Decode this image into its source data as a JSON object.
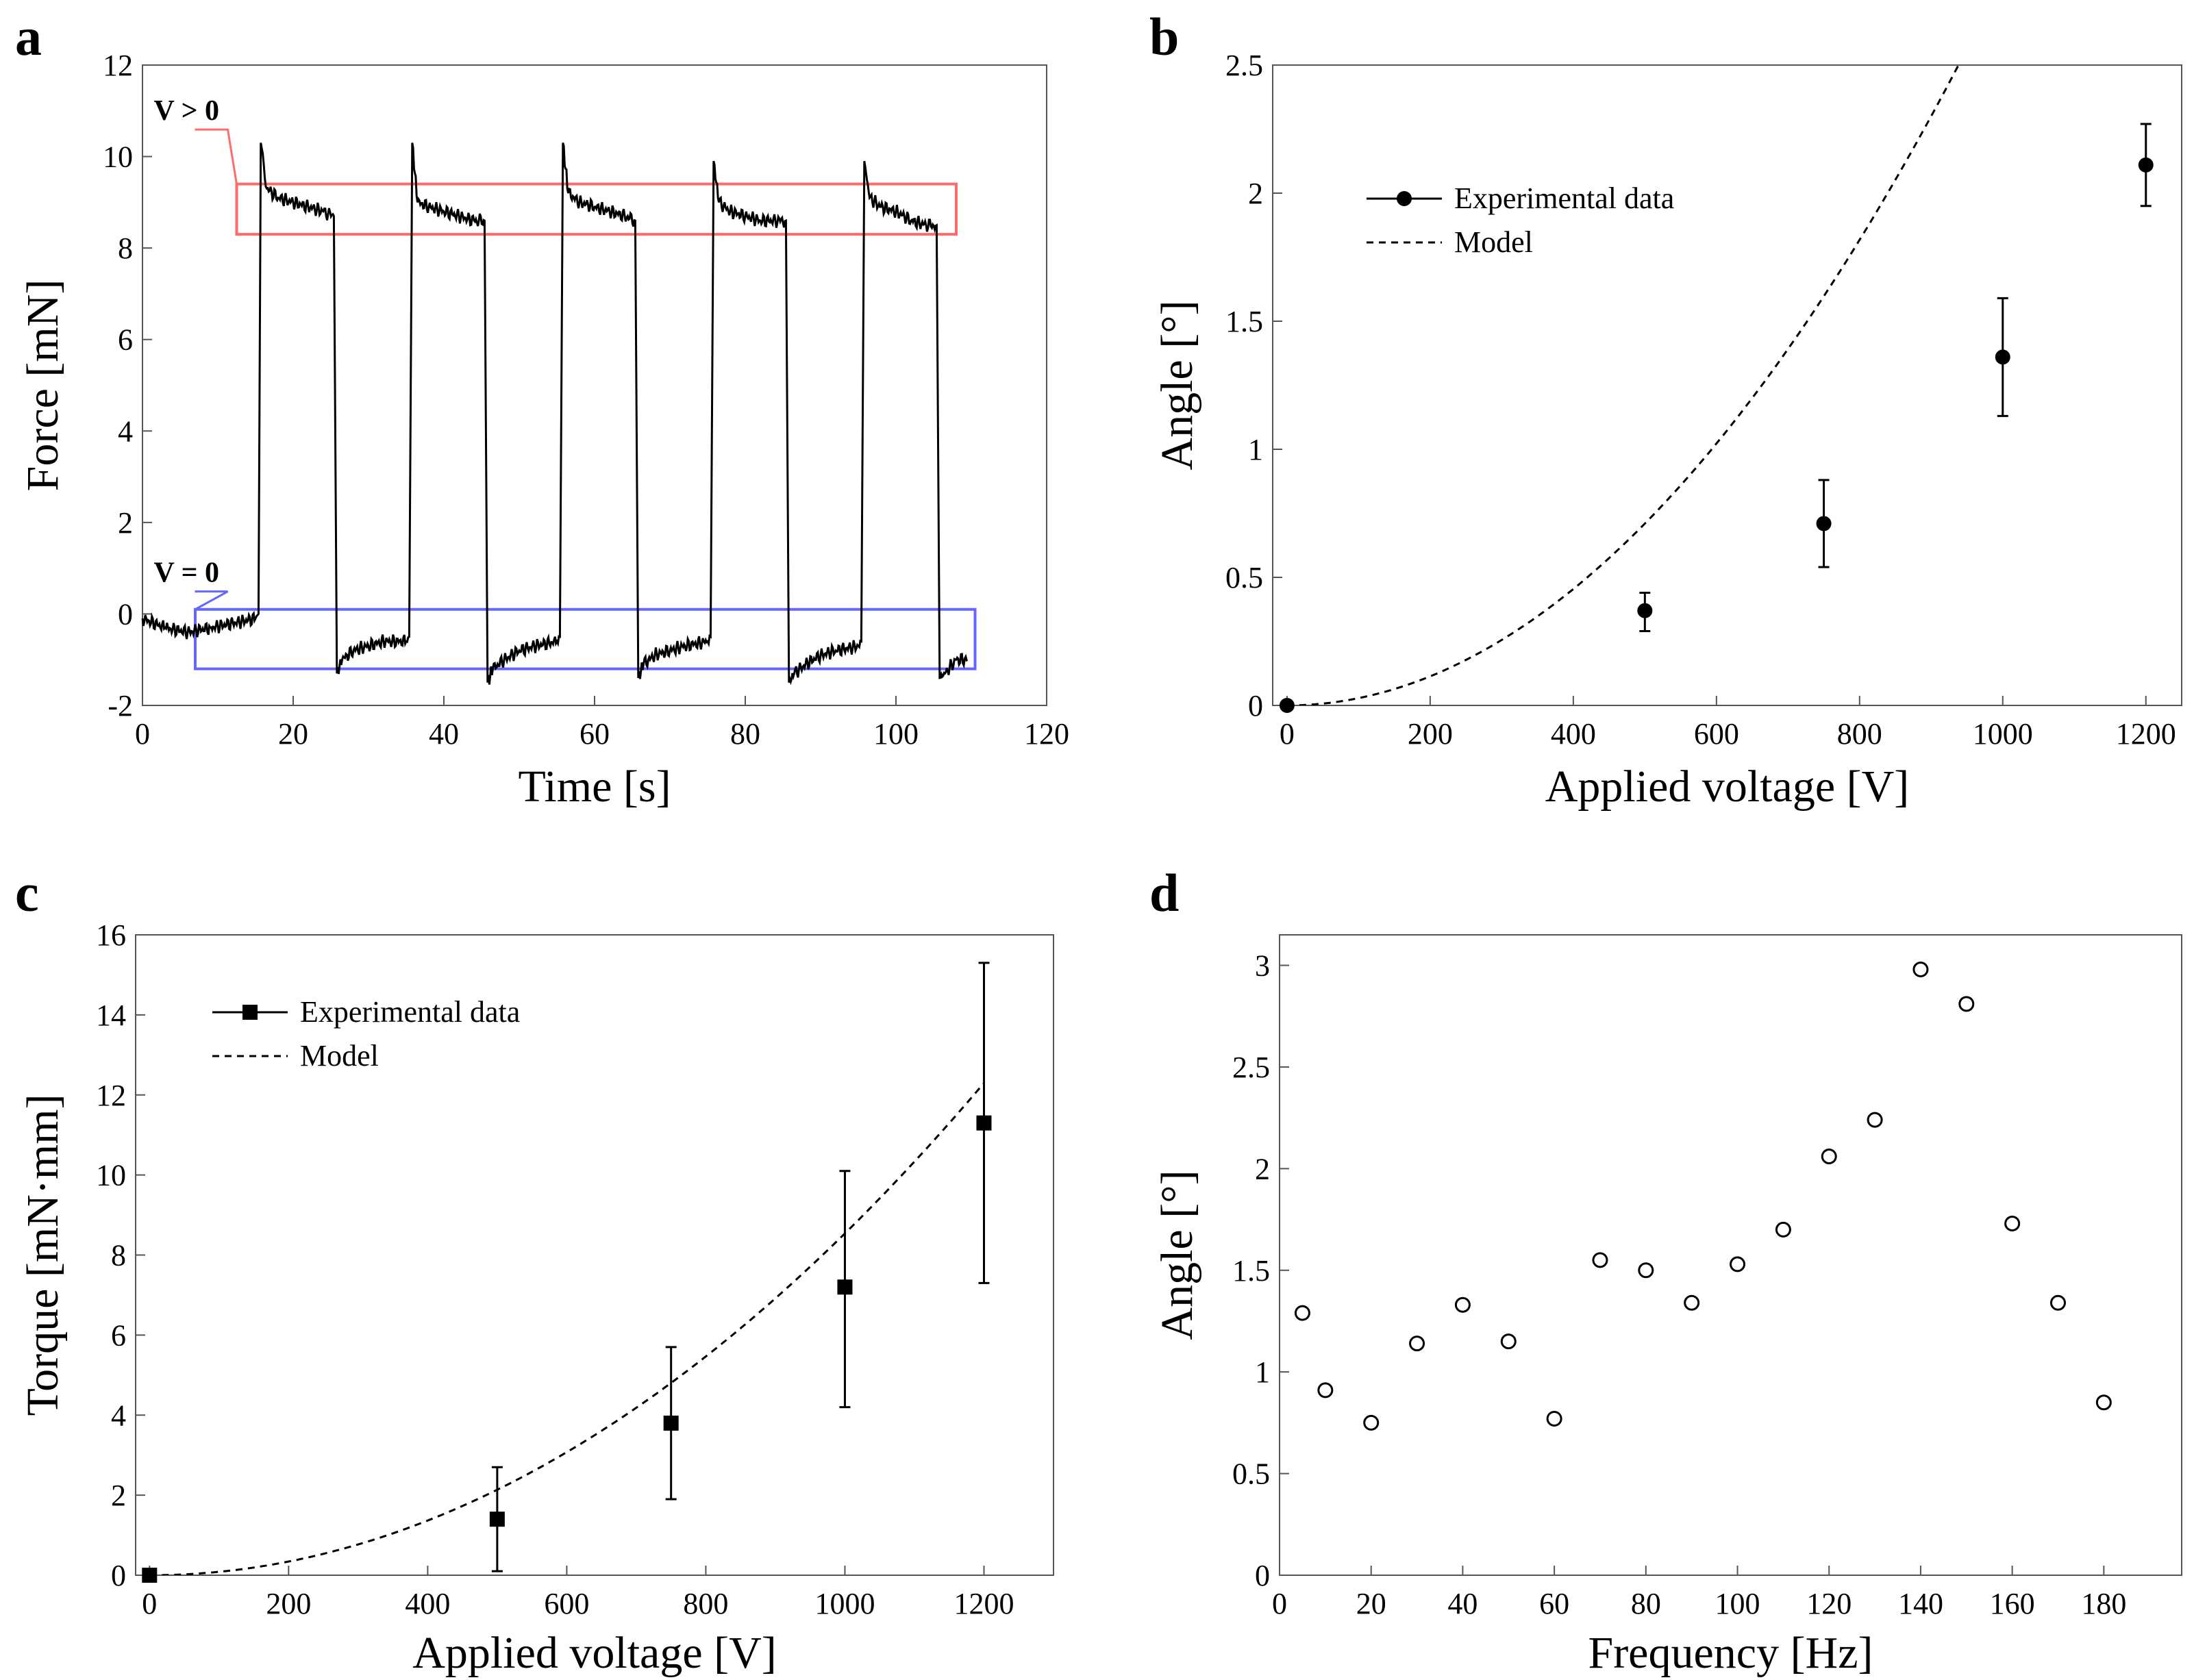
{
  "panels": {
    "a": {
      "letter": "a"
    },
    "b": {
      "letter": "b"
    },
    "c": {
      "letter": "c"
    },
    "d": {
      "letter": "d"
    }
  },
  "chart_data": [
    {
      "panel": "a",
      "type": "line",
      "xlabel": "Time [s]",
      "ylabel": "Force [mN]",
      "xlim": [
        0,
        120
      ],
      "ylim": [
        -2,
        12
      ],
      "xticks": [
        0,
        20,
        40,
        60,
        80,
        100,
        120
      ],
      "yticks": [
        -2,
        0,
        2,
        4,
        6,
        8,
        10,
        12
      ],
      "grid": false,
      "series": [
        {
          "color": "#000000",
          "points": [
            [
              0,
              -0.1
            ],
            [
              3,
              -0.3
            ],
            [
              6,
              -0.4
            ],
            [
              9,
              -0.3
            ],
            [
              12,
              -0.2
            ],
            [
              15,
              -0.1
            ],
            [
              15.4,
              0.0
            ],
            [
              15.7,
              10.3
            ],
            [
              16.5,
              9.3
            ],
            [
              18,
              9.1
            ],
            [
              20,
              9.0
            ],
            [
              22,
              8.9
            ],
            [
              24,
              8.8
            ],
            [
              25.4,
              8.7
            ],
            [
              25.8,
              -1.3
            ],
            [
              26.5,
              -1.0
            ],
            [
              28,
              -0.8
            ],
            [
              30,
              -0.7
            ],
            [
              32,
              -0.6
            ],
            [
              35,
              -0.6
            ],
            [
              35.4,
              -0.5
            ],
            [
              35.8,
              10.3
            ],
            [
              36.5,
              9.0
            ],
            [
              38,
              8.9
            ],
            [
              40,
              8.8
            ],
            [
              42,
              8.7
            ],
            [
              44,
              8.6
            ],
            [
              45.4,
              8.6
            ],
            [
              45.8,
              -1.5
            ],
            [
              46.5,
              -1.2
            ],
            [
              48,
              -1.0
            ],
            [
              50,
              -0.8
            ],
            [
              52,
              -0.7
            ],
            [
              55,
              -0.6
            ],
            [
              55.4,
              -0.5
            ],
            [
              55.8,
              10.3
            ],
            [
              56.5,
              9.2
            ],
            [
              58,
              9.0
            ],
            [
              60,
              8.9
            ],
            [
              62,
              8.8
            ],
            [
              64,
              8.7
            ],
            [
              65.4,
              8.6
            ],
            [
              65.8,
              -1.4
            ],
            [
              66.5,
              -1.1
            ],
            [
              68,
              -0.9
            ],
            [
              70,
              -0.8
            ],
            [
              72,
              -0.7
            ],
            [
              75,
              -0.6
            ],
            [
              75.4,
              -0.5
            ],
            [
              75.8,
              9.9
            ],
            [
              76.5,
              9.0
            ],
            [
              78,
              8.8
            ],
            [
              80,
              8.7
            ],
            [
              82,
              8.6
            ],
            [
              84,
              8.6
            ],
            [
              85.4,
              8.6
            ],
            [
              85.8,
              -1.5
            ],
            [
              86.5,
              -1.3
            ],
            [
              88,
              -1.1
            ],
            [
              90,
              -0.9
            ],
            [
              92,
              -0.8
            ],
            [
              95,
              -0.7
            ],
            [
              95.4,
              -0.6
            ],
            [
              95.8,
              9.9
            ],
            [
              96.5,
              9.1
            ],
            [
              98,
              8.9
            ],
            [
              100,
              8.8
            ],
            [
              102,
              8.6
            ],
            [
              104,
              8.5
            ],
            [
              105.4,
              8.5
            ],
            [
              105.8,
              -1.4
            ],
            [
              106.5,
              -1.3
            ],
            [
              108,
              -1.0
            ],
            [
              109.5,
              -1.0
            ]
          ]
        }
      ],
      "annotations": [
        {
          "label": "V > 0",
          "box": {
            "x": [
              12.5,
              108
            ],
            "y": [
              8.3,
              9.4
            ]
          },
          "color": "#ff6b6b",
          "label_at": [
            1.5,
            10.8
          ]
        },
        {
          "label": "V = 0",
          "box": {
            "x": [
              7,
              110.5
            ],
            "y": [
              -1.2,
              0.1
            ]
          },
          "color": "#6666ff",
          "label_at": [
            1.5,
            0.7
          ]
        }
      ]
    },
    {
      "panel": "b",
      "type": "scatter",
      "xlabel": "Applied voltage [V]",
      "ylabel": "Angle [°]",
      "xlim": [
        -20,
        1250
      ],
      "ylim": [
        0,
        2.5
      ],
      "xticks": [
        0,
        200,
        400,
        600,
        800,
        1000,
        1200
      ],
      "yticks": [
        0,
        0.5,
        1,
        1.5,
        2,
        2.5
      ],
      "ytick_labels": [
        "0",
        "0.5",
        "1",
        "1.5",
        "2",
        "2.5"
      ],
      "grid": false,
      "legend_position": "upper-left",
      "series": [
        {
          "name": "Experimental data",
          "style": "filled-circle",
          "x": [
            0,
            500,
            750,
            1000,
            1200
          ],
          "y": [
            0,
            0.37,
            0.71,
            1.36,
            2.11
          ],
          "err_low": [
            0,
            0.08,
            0.17,
            0.23,
            0.16
          ],
          "err_high": [
            0,
            0.07,
            0.17,
            0.23,
            0.16
          ]
        },
        {
          "name": "Model",
          "style": "dashed",
          "model": "quadratic",
          "coefficient": 2.84e-06
        }
      ]
    },
    {
      "panel": "c",
      "type": "scatter",
      "xlabel": "Applied voltage [V]",
      "ylabel": "Torque [mN·mm]",
      "xlim": [
        -20,
        1300
      ],
      "ylim": [
        0,
        16
      ],
      "xticks": [
        0,
        200,
        400,
        600,
        800,
        1000,
        1200
      ],
      "yticks": [
        0,
        2,
        4,
        6,
        8,
        10,
        12,
        14,
        16
      ],
      "grid": false,
      "legend_position": "upper-left",
      "series": [
        {
          "name": "Experimental data",
          "style": "filled-square",
          "x": [
            0,
            500,
            750,
            1000,
            1200
          ],
          "y": [
            0,
            1.4,
            3.8,
            7.2,
            11.3
          ],
          "err_low": [
            0,
            1.3,
            1.9,
            3.0,
            4.0
          ],
          "err_high": [
            0,
            1.3,
            1.9,
            2.9,
            4.0
          ]
        },
        {
          "name": "Model",
          "style": "dashed",
          "model": "quadratic",
          "coefficient": 8.54e-06
        }
      ]
    },
    {
      "panel": "d",
      "type": "scatter",
      "xlabel": "Frequency [Hz]",
      "ylabel": "Angle [°]",
      "xlim": [
        0,
        197
      ],
      "ylim": [
        0,
        3.15
      ],
      "xticks": [
        0,
        20,
        40,
        60,
        80,
        100,
        120,
        140,
        160,
        180
      ],
      "yticks": [
        0,
        0.5,
        1,
        1.5,
        2,
        2.5,
        3
      ],
      "ytick_labels": [
        "0",
        "0.5",
        "1",
        "1.5",
        "2",
        "2.5",
        "3"
      ],
      "grid": false,
      "series": [
        {
          "style": "open-circle",
          "x": [
            5,
            10,
            20,
            30,
            40,
            50,
            60,
            70,
            80,
            90,
            100,
            110,
            120,
            130,
            140,
            150,
            160,
            170,
            180
          ],
          "y": [
            1.29,
            0.91,
            0.75,
            1.14,
            1.33,
            1.15,
            0.77,
            1.55,
            1.5,
            1.34,
            1.53,
            1.7,
            2.06,
            2.24,
            2.98,
            2.81,
            1.73,
            1.34,
            0.85
          ]
        }
      ]
    }
  ]
}
